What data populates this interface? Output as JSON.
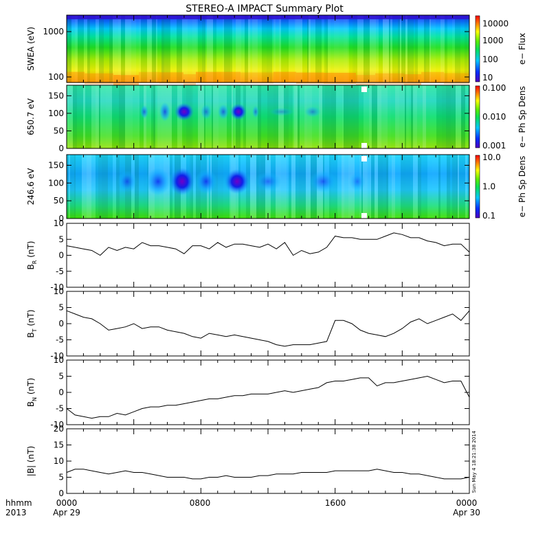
{
  "title": "STEREO-A IMPACT Summary Plot",
  "footer": {
    "row1_label": "hhmm",
    "row2_label": "2013",
    "ticks": [
      "0000",
      "0800",
      "1600",
      "0000"
    ],
    "dates": [
      "Apr 29",
      "Apr 30"
    ]
  },
  "timestamp": "Sun May  4 18:21:38 2014",
  "chart_data": [
    {
      "type": "heatmap",
      "ylabel": "SWEA (eV)",
      "y_scale": "log",
      "yticks": [
        "1000",
        "100"
      ],
      "colorbar": {
        "label": "e− Flux",
        "scale": "log",
        "ticks": [
          "10000",
          "1000",
          "100",
          "10"
        ]
      }
    },
    {
      "type": "heatmap",
      "ylabel": "650.7 eV",
      "ylim": [
        0,
        180
      ],
      "yticks": [
        "150",
        "100",
        "50",
        "0"
      ],
      "colorbar": {
        "label": "e− Ph Sp Dens",
        "scale": "log",
        "ticks": [
          "0.100",
          "0.010",
          "0.001"
        ]
      }
    },
    {
      "type": "heatmap",
      "ylabel": "246.6 eV",
      "ylim": [
        0,
        180
      ],
      "yticks": [
        "150",
        "100",
        "50",
        "0"
      ],
      "colorbar": {
        "label": "e− Ph Sp Dens",
        "scale": "log",
        "ticks": [
          "10.0",
          "1.0",
          "0.1"
        ]
      }
    },
    {
      "type": "line",
      "ylabel": "BR (nT)",
      "ylim": [
        -10,
        10
      ],
      "yticks": [
        "10",
        "5",
        "0",
        "-5",
        "-10"
      ],
      "x": [
        0,
        0.5,
        1,
        1.5,
        2,
        2.5,
        3,
        3.5,
        4,
        4.5,
        5,
        5.5,
        6,
        6.5,
        7,
        7.5,
        8,
        8.5,
        9,
        9.5,
        10,
        10.5,
        11,
        11.5,
        12,
        12.5,
        13,
        13.5,
        14,
        14.5,
        15,
        15.5,
        16,
        16.5,
        17,
        17.5,
        18,
        18.5,
        19,
        19.5,
        20,
        20.5,
        21,
        21.5,
        22,
        22.5,
        23,
        23.5,
        24
      ],
      "values": [
        3,
        2.5,
        2,
        1.5,
        0,
        2.5,
        1.5,
        2.5,
        2,
        4,
        3,
        3,
        2.5,
        2,
        0.5,
        3,
        3,
        2,
        4,
        2.5,
        3.5,
        3.5,
        3,
        2.5,
        3.5,
        2,
        4,
        0,
        1.5,
        0.5,
        1,
        2.5,
        6,
        5.5,
        5.5,
        5,
        5,
        5,
        6,
        7,
        6.5,
        5.5,
        5.5,
        4.5,
        4,
        3,
        3.5,
        3.5,
        1
      ]
    },
    {
      "type": "line",
      "ylabel": "BT (nT)",
      "ylim": [
        -10,
        10
      ],
      "yticks": [
        "10",
        "5",
        "0",
        "-5",
        "-10"
      ],
      "x": [
        0,
        0.5,
        1,
        1.5,
        2,
        2.5,
        3,
        3.5,
        4,
        4.5,
        5,
        5.5,
        6,
        6.5,
        7,
        7.5,
        8,
        8.5,
        9,
        9.5,
        10,
        10.5,
        11,
        11.5,
        12,
        12.5,
        13,
        13.5,
        14,
        14.5,
        15,
        15.5,
        16,
        16.5,
        17,
        17.5,
        18,
        18.5,
        19,
        19.5,
        20,
        20.5,
        21,
        21.5,
        22,
        22.5,
        23,
        23.5,
        24
      ],
      "values": [
        4,
        3,
        2,
        1.5,
        0,
        -2,
        -1.5,
        -1,
        0,
        -1.5,
        -1,
        -1,
        -2,
        -2.5,
        -3,
        -4,
        -4.5,
        -3,
        -3.5,
        -4,
        -3.5,
        -4,
        -4.5,
        -5,
        -5.5,
        -6.5,
        -7,
        -6.5,
        -6.5,
        -6.5,
        -6,
        -5.5,
        1,
        1,
        0,
        -2,
        -3,
        -3.5,
        -4,
        -3,
        -1.5,
        0.5,
        1.5,
        0,
        1,
        2,
        3,
        1,
        4
      ]
    },
    {
      "type": "line",
      "ylabel": "BN (nT)",
      "ylim": [
        -10,
        10
      ],
      "yticks": [
        "10",
        "5",
        "0",
        "-5",
        "-10"
      ],
      "x": [
        0,
        0.5,
        1,
        1.5,
        2,
        2.5,
        3,
        3.5,
        4,
        4.5,
        5,
        5.5,
        6,
        6.5,
        7,
        7.5,
        8,
        8.5,
        9,
        9.5,
        10,
        10.5,
        11,
        11.5,
        12,
        12.5,
        13,
        13.5,
        14,
        14.5,
        15,
        15.5,
        16,
        16.5,
        17,
        17.5,
        18,
        18.5,
        19,
        19.5,
        20,
        20.5,
        21,
        21.5,
        22,
        22.5,
        23,
        23.5,
        24
      ],
      "values": [
        -5,
        -7,
        -7.5,
        -8,
        -7.5,
        -7.5,
        -6.5,
        -7,
        -6,
        -5,
        -4.5,
        -4.5,
        -4,
        -4,
        -3.5,
        -3,
        -2.5,
        -2,
        -2,
        -1.5,
        -1,
        -1,
        -0.5,
        -0.5,
        -0.5,
        0,
        0.5,
        0,
        0.5,
        1,
        1.5,
        3,
        3.5,
        3.5,
        4,
        4.5,
        4.5,
        2,
        3,
        3,
        3.5,
        4,
        4.5,
        5,
        4,
        3,
        3.5,
        3.5,
        -1.5
      ]
    },
    {
      "type": "line",
      "ylabel": "|B| (nT)",
      "ylim": [
        0,
        20
      ],
      "yticks": [
        "20",
        "15",
        "10",
        "5",
        "0"
      ],
      "x": [
        0,
        0.5,
        1,
        1.5,
        2,
        2.5,
        3,
        3.5,
        4,
        4.5,
        5,
        5.5,
        6,
        6.5,
        7,
        7.5,
        8,
        8.5,
        9,
        9.5,
        10,
        10.5,
        11,
        11.5,
        12,
        12.5,
        13,
        13.5,
        14,
        14.5,
        15,
        15.5,
        16,
        16.5,
        17,
        17.5,
        18,
        18.5,
        19,
        19.5,
        20,
        20.5,
        21,
        21.5,
        22,
        22.5,
        23,
        23.5,
        24
      ],
      "values": [
        6.5,
        7.5,
        7.5,
        7,
        6.5,
        6,
        6.5,
        7,
        6.5,
        6.5,
        6,
        5.5,
        5,
        5,
        5,
        4.5,
        4.5,
        5,
        5,
        5.5,
        5,
        5,
        5,
        5.5,
        5.5,
        6,
        6,
        6,
        6.5,
        6.5,
        6.5,
        6.5,
        7,
        7,
        7,
        7,
        7,
        7.5,
        7,
        6.5,
        6.5,
        6,
        6,
        5.5,
        5,
        4.5,
        4.5,
        4.5,
        5
      ]
    }
  ]
}
